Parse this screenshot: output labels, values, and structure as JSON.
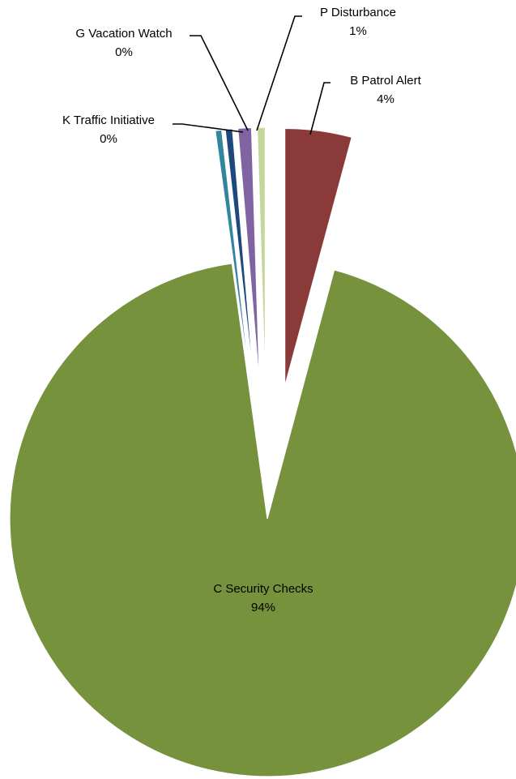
{
  "chart_data": {
    "type": "pie",
    "title": "",
    "slices": [
      {
        "label": "B Patrol Alert",
        "percent_label": "4%",
        "value": 4.2,
        "color": "#8B3A3A"
      },
      {
        "label": "C Security Checks",
        "percent_label": "94%",
        "value": 94.0,
        "color": "#76923C"
      },
      {
        "label": "K Traffic Initiative",
        "percent_label": "0%",
        "value": 0.4,
        "color": "#31859C"
      },
      {
        "label": "G Vacation Watch",
        "percent_label": "0%",
        "value": 0.45,
        "color": "#1F497D"
      },
      {
        "label": "P Disturbance",
        "percent_label": "1%",
        "value": 0.85,
        "color": "#8064A2"
      },
      {
        "label": "",
        "percent_label": "",
        "value": 0.5,
        "color": "#C4D79B"
      }
    ],
    "legend": "none"
  }
}
